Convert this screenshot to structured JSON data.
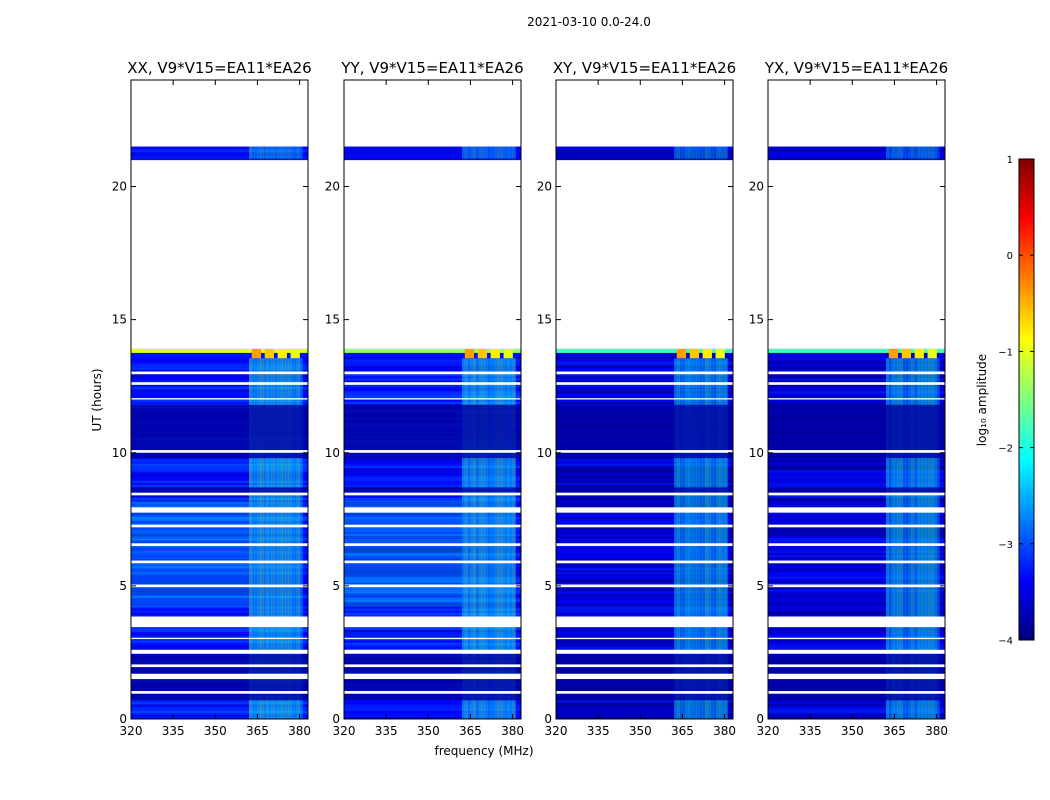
{
  "figure": {
    "title": "2021-03-10 0.0-24.0",
    "xlabel": "frequency (MHz)",
    "ylabel": "UT (hours)"
  },
  "chart_data": {
    "type": "heatmap",
    "title": "2021-03-10 0.0-24.0",
    "xlabel": "frequency (MHz)",
    "ylabel": "UT (hours)",
    "xlim": [
      320,
      383
    ],
    "ylim": [
      0,
      24
    ],
    "xticks": [
      320,
      335,
      350,
      365,
      380
    ],
    "yticks": [
      0,
      5,
      10,
      15,
      20
    ],
    "panels": [
      {
        "title": "XX, V9*V15=EA11*EA26",
        "level_day": -2.3,
        "level_night": -3.3,
        "rfi_level": -2.0,
        "edge_level": -1.0
      },
      {
        "title": "YY, V9*V15=EA11*EA26",
        "level_day": -2.3,
        "level_night": -3.3,
        "rfi_level": -2.0,
        "edge_level": -1.4
      },
      {
        "title": "XY, V9*V15=EA11*EA26",
        "level_day": -3.4,
        "level_night": -3.6,
        "rfi_level": -2.2,
        "edge_level": -1.8
      },
      {
        "title": "YX, V9*V15=EA11*EA26",
        "level_day": -3.4,
        "level_night": -3.6,
        "rfi_level": -2.2,
        "edge_level": -1.8
      }
    ],
    "data_bands_ut": [
      [
        0.0,
        13.9
      ],
      [
        21.0,
        21.5
      ]
    ],
    "rfi_band_mhz": [
      362,
      381
    ],
    "rfi_flare_ut": [
      13.55,
      13.9
    ],
    "flagged_bands_ut": [
      [
        0.95,
        1.05
      ],
      [
        1.5,
        1.7
      ],
      [
        1.95,
        2.05
      ],
      [
        2.45,
        2.6
      ],
      [
        3.0,
        3.05
      ],
      [
        3.45,
        3.85
      ],
      [
        4.95,
        5.05
      ],
      [
        5.85,
        5.95
      ],
      [
        6.5,
        6.6
      ],
      [
        7.2,
        7.3
      ],
      [
        7.75,
        7.95
      ],
      [
        8.4,
        8.5
      ],
      [
        10.0,
        10.1
      ],
      [
        12.0,
        12.05
      ],
      [
        12.55,
        12.65
      ],
      [
        12.95,
        13.05
      ]
    ],
    "dark_bands_ut": [
      [
        0.7,
        0.95
      ],
      [
        1.05,
        1.5
      ],
      [
        1.7,
        1.95
      ],
      [
        2.05,
        2.45
      ],
      [
        8.5,
        8.7
      ],
      [
        9.8,
        10.0
      ],
      [
        10.1,
        11.8
      ],
      [
        21.0,
        21.05
      ]
    ],
    "colorbar": {
      "label": "log₁₀ amplitude",
      "min": -4,
      "max": 1,
      "ticks": [
        1,
        0,
        -1,
        -2,
        -3,
        -4
      ],
      "tick_labels": [
        "1",
        "0",
        "−1",
        "−2",
        "−3",
        "−4"
      ],
      "colormap": "jet",
      "colors": [
        "#00007f",
        "#0000ff",
        "#007fff",
        "#00ffff",
        "#7fff7f",
        "#ffff00",
        "#ff7f00",
        "#ff0000",
        "#7f0000"
      ]
    }
  }
}
